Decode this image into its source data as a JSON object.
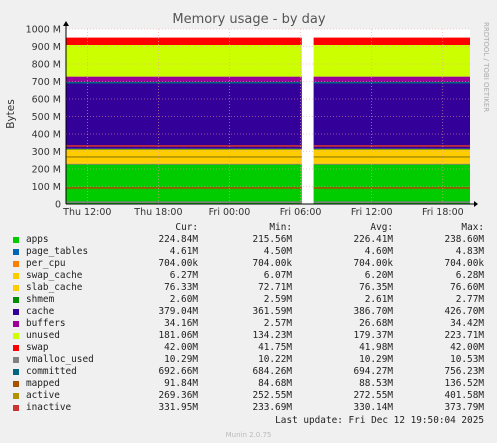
{
  "chart_data": {
    "type": "area",
    "title": "Memory usage - by day",
    "ylabel": "Bytes",
    "side_label": "RRDTOOL / TOBI OETIKER",
    "yticks": [
      "0",
      "100 M",
      "200 M",
      "300 M",
      "400 M",
      "500 M",
      "600 M",
      "700 M",
      "800 M",
      "900 M",
      "1000 M"
    ],
    "ylim": [
      0,
      1000
    ],
    "xticks": [
      {
        "label": "Thu 12:00",
        "t": 12
      },
      {
        "label": "Thu 18:00",
        "t": 18
      },
      {
        "label": "Fri 00:00",
        "t": 24
      },
      {
        "label": "Fri 06:00",
        "t": 30
      },
      {
        "label": "Fri 12:00",
        "t": 36
      },
      {
        "label": "Fri 18:00",
        "t": 42
      }
    ],
    "xlim": [
      10.2,
      44.3
    ],
    "gap": [
      30.1,
      31.1
    ],
    "grid": true,
    "legend_headers": {
      "cur": "Cur:",
      "min": "Min:",
      "avg": "Avg:",
      "max": "Max:"
    },
    "stack_order": [
      "apps",
      "page_tables",
      "per_cpu",
      "swap_cache",
      "slab_cache",
      "shmem",
      "cache",
      "buffers",
      "unused",
      "swap"
    ],
    "series": [
      {
        "name": "apps",
        "color": "#00cc00",
        "cur": "224.84M",
        "min": "215.56M",
        "avg": "226.41M",
        "max": "238.60M",
        "value": 225
      },
      {
        "name": "page_tables",
        "color": "#0066b3",
        "cur": "4.61M",
        "min": "4.50M",
        "avg": "4.60M",
        "max": "4.83M",
        "value": 4.6
      },
      {
        "name": "per_cpu",
        "color": "#ff8000",
        "cur": "704.00k",
        "min": "704.00k",
        "avg": "704.00k",
        "max": "704.00k",
        "value": 0.7
      },
      {
        "name": "swap_cache",
        "color": "#ffcc00",
        "cur": "6.27M",
        "min": "6.07M",
        "avg": "6.20M",
        "max": "6.28M",
        "value": 6.2
      },
      {
        "name": "slab_cache",
        "color": "#ffcc00",
        "cur": "76.33M",
        "min": "72.71M",
        "avg": "76.35M",
        "max": "76.60M",
        "value": 76
      },
      {
        "name": "shmem",
        "color": "#008f00",
        "cur": "2.60M",
        "min": "2.59M",
        "avg": "2.61M",
        "max": "2.77M",
        "value": 2.6
      },
      {
        "name": "cache",
        "color": "#330099",
        "cur": "379.04M",
        "min": "361.59M",
        "avg": "386.70M",
        "max": "426.70M",
        "value": 379
      },
      {
        "name": "buffers",
        "color": "#990099",
        "cur": "34.16M",
        "min": "2.57M",
        "avg": "26.68M",
        "max": "34.42M",
        "value": 34
      },
      {
        "name": "unused",
        "color": "#ccff00",
        "cur": "181.06M",
        "min": "134.23M",
        "avg": "179.37M",
        "max": "223.71M",
        "value": 181
      },
      {
        "name": "swap",
        "color": "#ff0000",
        "cur": "42.00M",
        "min": "41.75M",
        "avg": "41.98M",
        "max": "42.00M",
        "value": 42
      },
      {
        "name": "vmalloc_used",
        "color": "#808080",
        "cur": "10.29M",
        "min": "10.22M",
        "avg": "10.29M",
        "max": "10.53M",
        "value": 10.3
      },
      {
        "name": "committed",
        "color": "#006680",
        "cur": "692.66M",
        "min": "684.26M",
        "avg": "694.27M",
        "max": "756.23M",
        "value": 693
      },
      {
        "name": "mapped",
        "color": "#a65200",
        "cur": "91.84M",
        "min": "84.68M",
        "avg": "88.53M",
        "max": "136.52M",
        "value": 92
      },
      {
        "name": "active",
        "color": "#b39400",
        "cur": "269.36M",
        "min": "252.55M",
        "avg": "272.55M",
        "max": "401.58M",
        "value": 269
      },
      {
        "name": "inactive",
        "color": "#cc3333",
        "cur": "331.95M",
        "min": "233.69M",
        "avg": "330.14M",
        "max": "373.79M",
        "value": 332
      }
    ]
  },
  "footer": {
    "last_update": "Last update:  Fri Dec 12 19:50:04 2025",
    "version": "Munin 2.0.75"
  }
}
